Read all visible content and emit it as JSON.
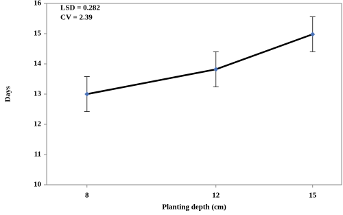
{
  "chart_data": {
    "type": "line",
    "x_label": "Planting depth (cm)",
    "y_label": "Days",
    "annotations": [
      "LSD = 0.282",
      "CV = 2.39"
    ],
    "x": [
      8,
      12,
      15
    ],
    "series": [
      {
        "color": "#000000",
        "marker_color": "#4a72b8",
        "values": [
          13.0,
          13.82,
          14.98
        ],
        "errors": [
          0.58,
          0.58,
          0.58
        ]
      }
    ],
    "xlim": [
      6.75,
      15.9
    ],
    "xticks": [
      8,
      12,
      15
    ],
    "ylim": [
      10,
      16
    ],
    "yticks": [
      10,
      11,
      12,
      13,
      14,
      15,
      16
    ]
  }
}
